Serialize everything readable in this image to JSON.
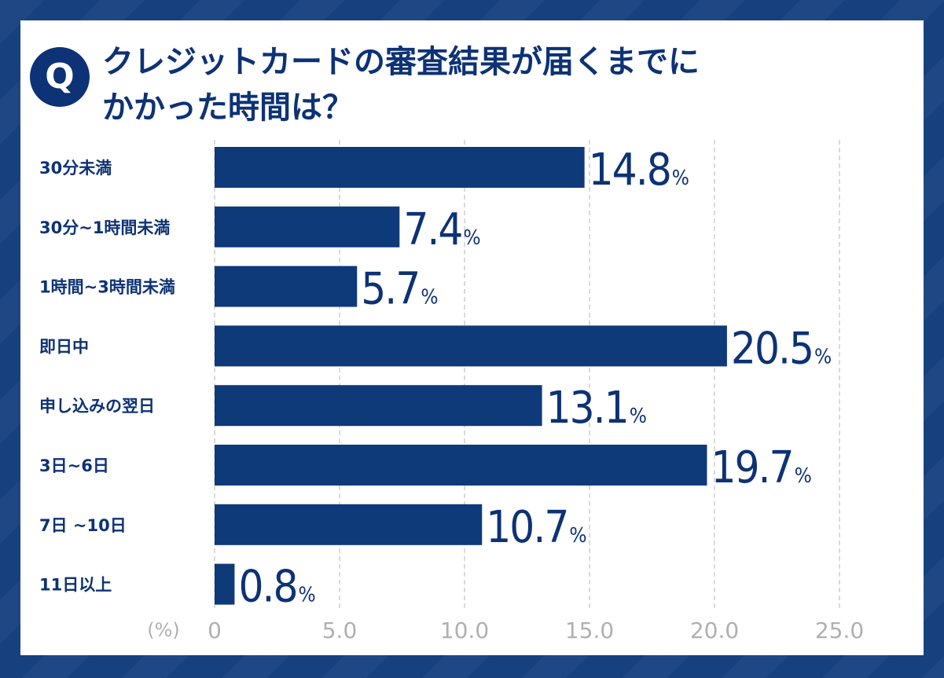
{
  "header": {
    "badge": "Q",
    "title_line1": "クレジットカードの審査結果が届くまでに",
    "title_line2": "かかった時間は？"
  },
  "colors": {
    "bar": "#0e3a7a",
    "text": "#0d3275",
    "grid": "#b4b4b4",
    "tick": "#b0b0b0",
    "frame": "#17407f"
  },
  "chart_data": {
    "type": "bar",
    "orientation": "horizontal",
    "categories": [
      "30分未満",
      "30分~1時間未満",
      "1時間~3時間未満",
      "即日中",
      "申し込みの翌日",
      "3日~6日",
      "7日 ~10日",
      "11日以上"
    ],
    "values": [
      14.8,
      7.4,
      5.7,
      20.5,
      13.1,
      19.7,
      10.7,
      0.8
    ],
    "value_labels": [
      "14.8",
      "7.4",
      "5.7",
      "20.5",
      "13.1",
      "19.7",
      "10.7",
      "0.8"
    ],
    "value_suffix": "%",
    "xlim": [
      0,
      25
    ],
    "xticks": [
      "0",
      "5.0",
      "10.0",
      "15.0",
      "20.0",
      "25.0"
    ],
    "xtick_values": [
      0,
      5,
      10,
      15,
      20,
      25
    ],
    "unit_label": "(%)",
    "grid": "vertical dashed"
  }
}
